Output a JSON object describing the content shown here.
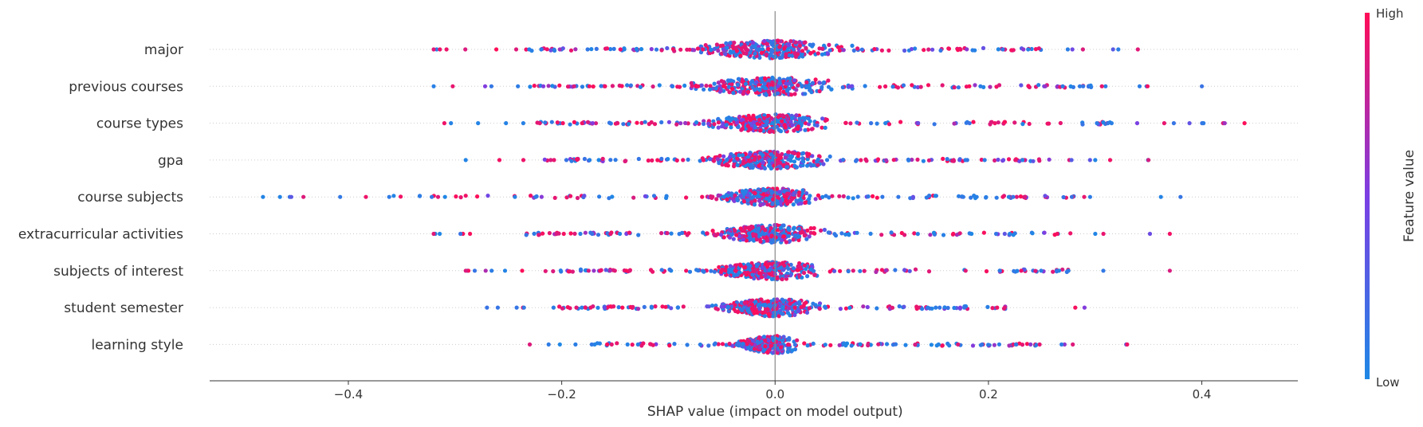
{
  "chart_data": {
    "type": "scatter",
    "subtype": "shap-beeswarm",
    "title": "",
    "xlabel": "SHAP value (impact on model output)",
    "ylabel": "",
    "xlim": [
      -0.53,
      0.49
    ],
    "xticks": [
      -0.4,
      -0.2,
      0.0,
      0.2,
      0.4
    ],
    "xtick_labels": [
      "−0.4",
      "−0.2",
      "0.0",
      "0.2",
      "0.4"
    ],
    "zero_line": true,
    "grid": false,
    "colors": {
      "low": "#1E88E5",
      "high": "#FF0D57",
      "mid": "#7B3FE4"
    },
    "colorbar": {
      "title": "Feature value",
      "high_label": "High",
      "low_label": "Low",
      "placement": "right"
    },
    "features": [
      {
        "name": "major",
        "min": -0.32,
        "max": 0.34,
        "core": 0.06
      },
      {
        "name": "previous courses",
        "min": -0.32,
        "max": 0.4,
        "core": 0.06
      },
      {
        "name": "course types",
        "min": -0.31,
        "max": 0.44,
        "core": 0.05
      },
      {
        "name": "gpa",
        "min": -0.29,
        "max": 0.35,
        "core": 0.05
      },
      {
        "name": "course subjects",
        "min": -0.48,
        "max": 0.38,
        "core": 0.04
      },
      {
        "name": "extracurricular activities",
        "min": -0.32,
        "max": 0.37,
        "core": 0.045
      },
      {
        "name": "subjects of interest",
        "min": -0.29,
        "max": 0.37,
        "core": 0.045
      },
      {
        "name": "student semester",
        "min": -0.27,
        "max": 0.29,
        "core": 0.04
      },
      {
        "name": "learning style",
        "min": -0.23,
        "max": 0.33,
        "core": 0.025
      }
    ]
  }
}
